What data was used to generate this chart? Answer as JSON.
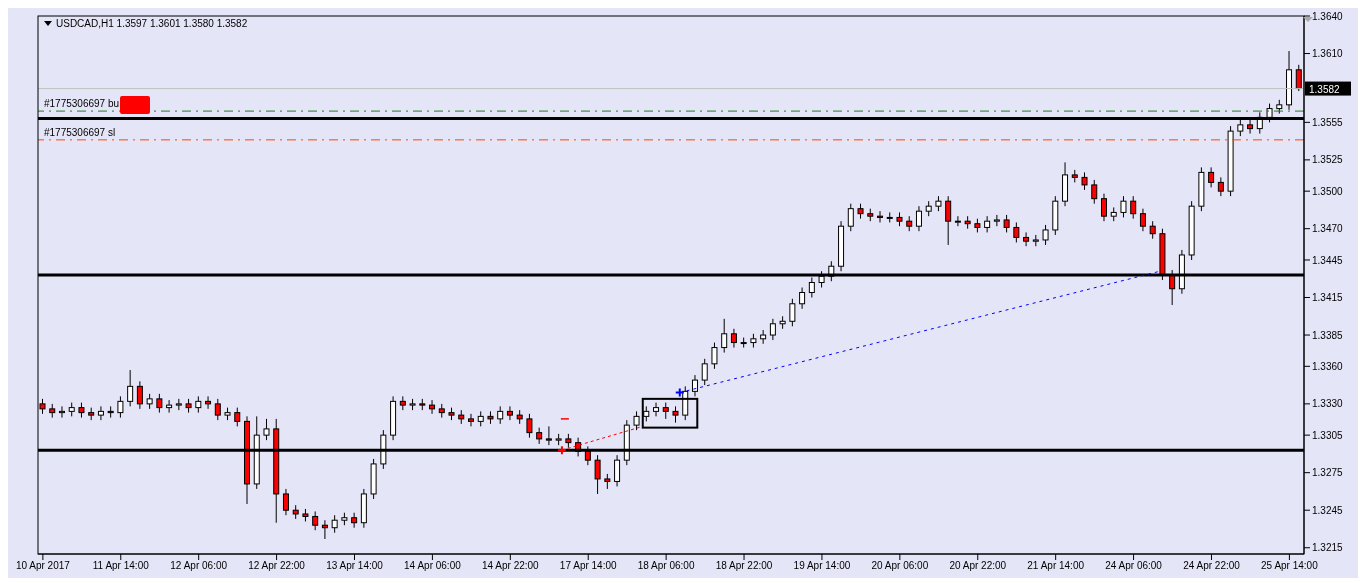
{
  "chart_data": {
    "type": "candlestick",
    "title": "USDCAD,H1  1.3597 1.3601 1.3580 1.3582",
    "categories": [
      "10 Apr 2017",
      null,
      null,
      null,
      null,
      null,
      null,
      null,
      "11 Apr 14:00",
      null,
      null,
      null,
      null,
      null,
      null,
      null,
      "12 Apr 06:00",
      null,
      null,
      null,
      null,
      null,
      null,
      null,
      "12 Apr 22:00",
      null,
      null,
      null,
      null,
      null,
      null,
      null,
      "13 Apr 14:00",
      null,
      null,
      null,
      null,
      null,
      null,
      null,
      "14 Apr 06:00",
      null,
      null,
      null,
      null,
      null,
      null,
      null,
      "14 Apr 22:00",
      null,
      null,
      null,
      null,
      null,
      null,
      null,
      "17 Apr 14:00",
      null,
      null,
      null,
      null,
      null,
      null,
      null,
      "18 Apr 06:00",
      null,
      null,
      null,
      null,
      null,
      null,
      null,
      "18 Apr 22:00",
      null,
      null,
      null,
      null,
      null,
      null,
      null,
      "19 Apr 14:00",
      null,
      null,
      null,
      null,
      null,
      null,
      null,
      "20 Apr 06:00",
      null,
      null,
      null,
      null,
      null,
      null,
      null,
      "20 Apr 22:00",
      null,
      null,
      null,
      null,
      null,
      null,
      null,
      "21 Apr 14:00",
      null,
      null,
      null,
      null,
      null,
      null,
      null,
      "24 Apr 06:00",
      null,
      null,
      null,
      null,
      null,
      null,
      null,
      "24 Apr 22:00",
      null,
      null,
      null,
      null,
      null,
      null,
      null,
      "25 Apr 14:00",
      null
    ],
    "ohlc": [
      [
        1.333,
        1.3334,
        1.3322,
        1.3326
      ],
      [
        1.3326,
        1.333,
        1.3319,
        1.3323
      ],
      [
        1.3323,
        1.3328,
        1.3319,
        1.3324
      ],
      [
        1.3324,
        1.3331,
        1.332,
        1.3327
      ],
      [
        1.3327,
        1.3331,
        1.3319,
        1.3323
      ],
      [
        1.3323,
        1.3327,
        1.3317,
        1.3321
      ],
      [
        1.3321,
        1.3328,
        1.3317,
        1.3324
      ],
      [
        1.3324,
        1.3328,
        1.3319,
        1.3323
      ],
      [
        1.3323,
        1.3336,
        1.3319,
        1.3332
      ],
      [
        1.3332,
        1.3357,
        1.3328,
        1.3344
      ],
      [
        1.3344,
        1.3348,
        1.3326,
        1.333
      ],
      [
        1.333,
        1.3338,
        1.3326,
        1.3334
      ],
      [
        1.3334,
        1.3338,
        1.3323,
        1.3327
      ],
      [
        1.3327,
        1.3333,
        1.3323,
        1.3329
      ],
      [
        1.3329,
        1.3334,
        1.3325,
        1.333
      ],
      [
        1.333,
        1.3334,
        1.3323,
        1.3327
      ],
      [
        1.3327,
        1.3336,
        1.3323,
        1.3332
      ],
      [
        1.3332,
        1.3336,
        1.3326,
        1.333
      ],
      [
        1.333,
        1.3334,
        1.3317,
        1.3321
      ],
      [
        1.3321,
        1.3327,
        1.3317,
        1.3323
      ],
      [
        1.3323,
        1.3327,
        1.3312,
        1.3316
      ],
      [
        1.3316,
        1.332,
        1.325,
        1.3266
      ],
      [
        1.3266,
        1.332,
        1.3262,
        1.3305
      ],
      [
        1.3305,
        1.3318,
        1.3301,
        1.331
      ],
      [
        1.331,
        1.3318,
        1.3235,
        1.3258
      ],
      [
        1.3258,
        1.3262,
        1.3241,
        1.3245
      ],
      [
        1.3245,
        1.3249,
        1.3238,
        1.3242
      ],
      [
        1.3242,
        1.3246,
        1.3236,
        1.324
      ],
      [
        1.324,
        1.3244,
        1.3229,
        1.3233
      ],
      [
        1.3233,
        1.3237,
        1.3222,
        1.3231
      ],
      [
        1.3231,
        1.3241,
        1.3227,
        1.3237
      ],
      [
        1.3237,
        1.3243,
        1.3233,
        1.3239
      ],
      [
        1.3239,
        1.3243,
        1.3231,
        1.3235
      ],
      [
        1.3235,
        1.3262,
        1.3231,
        1.3258
      ],
      [
        1.3258,
        1.3286,
        1.3254,
        1.3282
      ],
      [
        1.3282,
        1.3309,
        1.3278,
        1.3305
      ],
      [
        1.3305,
        1.3336,
        1.3301,
        1.3332
      ],
      [
        1.3332,
        1.3336,
        1.3325,
        1.3329
      ],
      [
        1.3329,
        1.3334,
        1.3325,
        1.333
      ],
      [
        1.333,
        1.3334,
        1.3325,
        1.3329
      ],
      [
        1.3329,
        1.3333,
        1.3322,
        1.3326
      ],
      [
        1.3326,
        1.333,
        1.3319,
        1.3323
      ],
      [
        1.3323,
        1.3327,
        1.3317,
        1.3321
      ],
      [
        1.3321,
        1.3325,
        1.3314,
        1.3318
      ],
      [
        1.3318,
        1.3322,
        1.3312,
        1.3316
      ],
      [
        1.3316,
        1.3324,
        1.3312,
        1.332
      ],
      [
        1.332,
        1.3324,
        1.3314,
        1.3318
      ],
      [
        1.3318,
        1.3328,
        1.3314,
        1.3324
      ],
      [
        1.3324,
        1.3328,
        1.3317,
        1.3321
      ],
      [
        1.3321,
        1.3325,
        1.3314,
        1.3318
      ],
      [
        1.3318,
        1.3322,
        1.3303,
        1.3307
      ],
      [
        1.3307,
        1.3311,
        1.3298,
        1.3302
      ],
      [
        1.3302,
        1.3312,
        1.3297,
        1.3301
      ],
      [
        1.3301,
        1.3306,
        1.3297,
        1.3302
      ],
      [
        1.3302,
        1.3306,
        1.3295,
        1.3299
      ],
      [
        1.3299,
        1.3303,
        1.3288,
        1.3292
      ],
      [
        1.3292,
        1.3296,
        1.3281,
        1.3285
      ],
      [
        1.3285,
        1.3289,
        1.3258,
        1.327
      ],
      [
        1.327,
        1.3274,
        1.3262,
        1.3268
      ],
      [
        1.3268,
        1.3289,
        1.3264,
        1.3285
      ],
      [
        1.3285,
        1.3317,
        1.3281,
        1.3313
      ],
      [
        1.3313,
        1.3324,
        1.3309,
        1.332
      ],
      [
        1.332,
        1.3328,
        1.3316,
        1.3324
      ],
      [
        1.3324,
        1.3331,
        1.332,
        1.3327
      ],
      [
        1.3327,
        1.3331,
        1.3318,
        1.3324
      ],
      [
        1.3324,
        1.3328,
        1.3315,
        1.3321
      ],
      [
        1.3321,
        1.3344,
        1.3317,
        1.334
      ],
      [
        1.334,
        1.3353,
        1.3336,
        1.3349
      ],
      [
        1.3349,
        1.3366,
        1.3345,
        1.3362
      ],
      [
        1.3362,
        1.3379,
        1.3358,
        1.3375
      ],
      [
        1.3375,
        1.3398,
        1.3371,
        1.3386
      ],
      [
        1.3386,
        1.339,
        1.3375,
        1.3379
      ],
      [
        1.3379,
        1.3383,
        1.3375,
        1.3379
      ],
      [
        1.3379,
        1.3386,
        1.3375,
        1.3382
      ],
      [
        1.3382,
        1.3389,
        1.3378,
        1.3385
      ],
      [
        1.3385,
        1.3398,
        1.3381,
        1.3394
      ],
      [
        1.3394,
        1.34,
        1.339,
        1.3396
      ],
      [
        1.3396,
        1.3414,
        1.3392,
        1.341
      ],
      [
        1.341,
        1.3423,
        1.3406,
        1.3419
      ],
      [
        1.3419,
        1.3431,
        1.3415,
        1.3427
      ],
      [
        1.3427,
        1.3436,
        1.3423,
        1.3432
      ],
      [
        1.3432,
        1.3444,
        1.3428,
        1.344
      ],
      [
        1.344,
        1.3476,
        1.3436,
        1.3472
      ],
      [
        1.3472,
        1.349,
        1.3468,
        1.3486
      ],
      [
        1.3486,
        1.349,
        1.3478,
        1.3482
      ],
      [
        1.3482,
        1.3486,
        1.3476,
        1.348
      ],
      [
        1.348,
        1.3484,
        1.3475,
        1.3479
      ],
      [
        1.3479,
        1.3483,
        1.3475,
        1.3479
      ],
      [
        1.3479,
        1.3483,
        1.3472,
        1.3476
      ],
      [
        1.3476,
        1.348,
        1.3468,
        1.3472
      ],
      [
        1.3472,
        1.3488,
        1.3468,
        1.3484
      ],
      [
        1.3484,
        1.3492,
        1.348,
        1.3488
      ],
      [
        1.3488,
        1.3496,
        1.3484,
        1.3492
      ],
      [
        1.3492,
        1.3496,
        1.3457,
        1.3476
      ],
      [
        1.3476,
        1.348,
        1.3472,
        1.3476
      ],
      [
        1.3476,
        1.348,
        1.347,
        1.3474
      ],
      [
        1.3474,
        1.3478,
        1.3467,
        1.3471
      ],
      [
        1.3471,
        1.348,
        1.3467,
        1.3476
      ],
      [
        1.3476,
        1.3481,
        1.3472,
        1.3477
      ],
      [
        1.3477,
        1.3481,
        1.3467,
        1.3471
      ],
      [
        1.3471,
        1.3475,
        1.3459,
        1.3463
      ],
      [
        1.3463,
        1.3467,
        1.3456,
        1.346
      ],
      [
        1.346,
        1.3465,
        1.3456,
        1.3461
      ],
      [
        1.3461,
        1.3473,
        1.3457,
        1.3469
      ],
      [
        1.3469,
        1.3496,
        1.3465,
        1.3492
      ],
      [
        1.3492,
        1.3523,
        1.3488,
        1.3513
      ],
      [
        1.3513,
        1.3517,
        1.3507,
        1.3511
      ],
      [
        1.3511,
        1.3515,
        1.3501,
        1.3505
      ],
      [
        1.3505,
        1.3509,
        1.349,
        1.3494
      ],
      [
        1.3494,
        1.3498,
        1.3476,
        1.348
      ],
      [
        1.348,
        1.3487,
        1.3476,
        1.3483
      ],
      [
        1.3483,
        1.3496,
        1.3479,
        1.3492
      ],
      [
        1.3492,
        1.3496,
        1.3478,
        1.3482
      ],
      [
        1.3482,
        1.3486,
        1.3468,
        1.3472
      ],
      [
        1.3472,
        1.3476,
        1.3462,
        1.3466
      ],
      [
        1.3466,
        1.347,
        1.3429,
        1.3433
      ],
      [
        1.3433,
        1.3437,
        1.3409,
        1.3422
      ],
      [
        1.3422,
        1.3453,
        1.3418,
        1.3449
      ],
      [
        1.3449,
        1.3492,
        1.3445,
        1.3488
      ],
      [
        1.3488,
        1.3519,
        1.3484,
        1.3515
      ],
      [
        1.3515,
        1.3519,
        1.3503,
        1.3507
      ],
      [
        1.3507,
        1.3511,
        1.3496,
        1.35
      ],
      [
        1.35,
        1.3552,
        1.3496,
        1.3548
      ],
      [
        1.3548,
        1.3557,
        1.3544,
        1.3553
      ],
      [
        1.3553,
        1.3557,
        1.3546,
        1.355
      ],
      [
        1.355,
        1.3563,
        1.3546,
        1.3559
      ],
      [
        1.3559,
        1.357,
        1.3555,
        1.3566
      ],
      [
        1.3566,
        1.3573,
        1.3562,
        1.3569
      ],
      [
        1.3569,
        1.3612,
        1.3565,
        1.3597
      ],
      [
        1.3597,
        1.3601,
        1.358,
        1.3582
      ]
    ],
    "ylim": [
      1.321,
      1.364
    ],
    "yticks": [
      {
        "value": 1.364,
        "label": "1.3640"
      },
      {
        "value": 1.361,
        "label": "1.3610"
      },
      1.3555,
      1.3525,
      {
        "value": 1.35,
        "label": "1.3500"
      },
      {
        "value": 1.347,
        "label": "1.3470"
      },
      1.3445,
      1.3415,
      1.3385,
      {
        "value": 1.336,
        "label": "1.3360"
      },
      {
        "value": 1.333,
        "label": "1.3330"
      },
      1.3305,
      1.3275,
      1.3245,
      1.3215
    ],
    "ref_lines": [
      {
        "axis": "y",
        "value": 1.3582,
        "label": "1.3582",
        "color": "#c0c0c0",
        "line_style": "solid"
      },
      {
        "axis": "y",
        "value": 1.3564,
        "label": "#1775306697 bu",
        "color": "#1f7a1f",
        "line_style": "dashed"
      },
      {
        "axis": "y",
        "value": 1.3558,
        "color": "#000000",
        "line_style": "solid"
      },
      {
        "axis": "y",
        "value": 1.3541,
        "label": "#1775306697 sl",
        "color": "#ff4500",
        "line_style": "dashed"
      },
      {
        "axis": "y",
        "value": 1.3433,
        "color": "#000000",
        "line_style": "solid"
      },
      {
        "axis": "y",
        "value": 1.3293,
        "color": "#000000",
        "line_style": "solid"
      }
    ],
    "tick_labels": true
  }
}
